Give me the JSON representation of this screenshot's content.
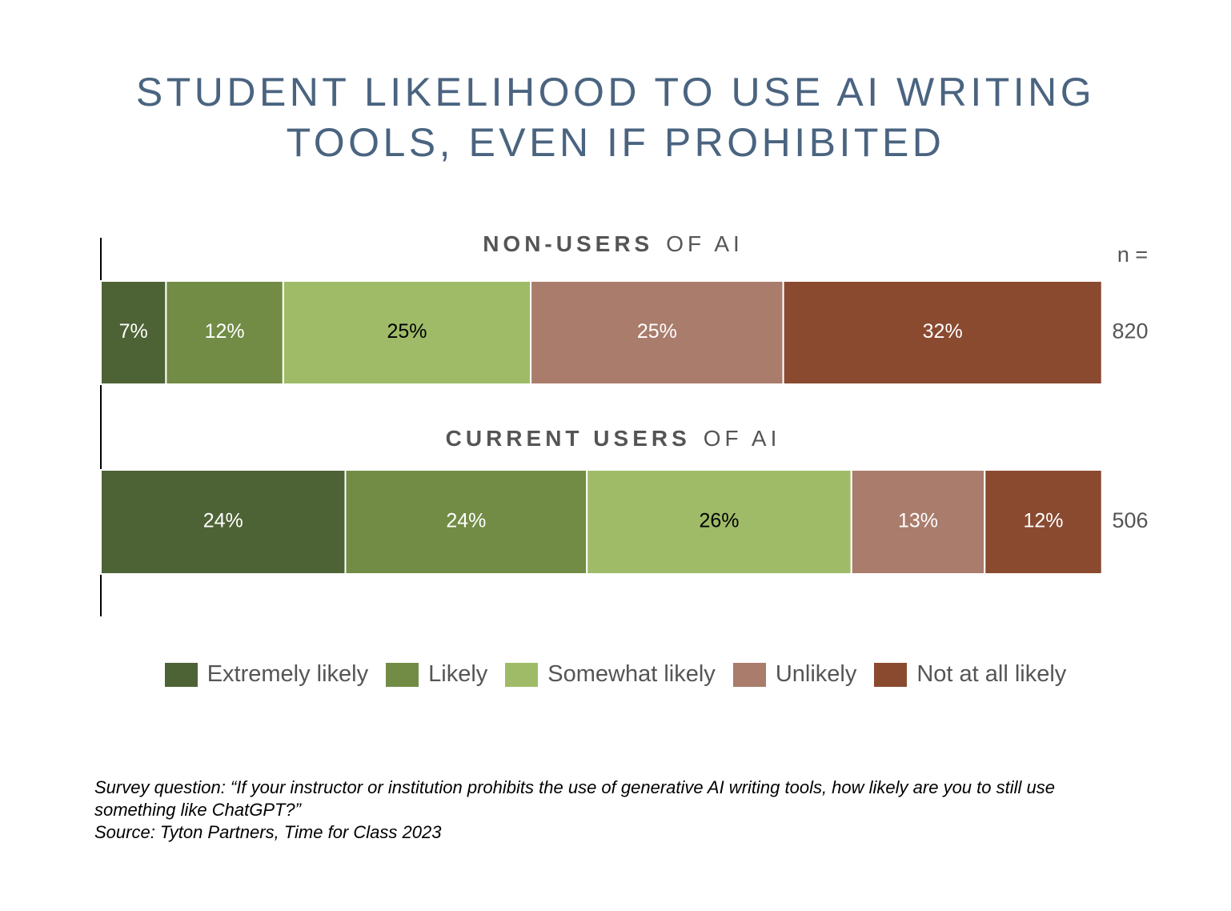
{
  "chart_data": {
    "type": "stacked_bar_horizontal",
    "title_lines": [
      "STUDENT LIKELIHOOD TO USE AI WRITING",
      "TOOLS, EVEN IF PROHIBITED"
    ],
    "categories": [
      {
        "strong": "NON-USERS",
        "rest": "OF AI"
      },
      {
        "strong": "CURRENT USERS",
        "rest": "OF AI"
      }
    ],
    "n_label": "n =",
    "n_values": [
      820,
      506
    ],
    "xlim": [
      0,
      100
    ],
    "series": [
      {
        "name": "Extremely likely",
        "color": "#4e6335",
        "label_color": "#ffffff",
        "values": [
          6.5,
          24.4
        ],
        "value_labels": [
          "7%",
          "24%"
        ]
      },
      {
        "name": "Likely",
        "color": "#728c46",
        "label_color": "#ffffff",
        "values": [
          11.7,
          24.1
        ],
        "value_labels": [
          "12%",
          "24%"
        ]
      },
      {
        "name": "Somewhat likely",
        "color": "#9fbb68",
        "label_color": "#000000",
        "values": [
          24.7,
          26.4
        ],
        "value_labels": [
          "25%",
          "26%"
        ]
      },
      {
        "name": "Unlikely",
        "color": "#a97c6c",
        "label_color": "#ffffff",
        "values": [
          25.2,
          13.3
        ],
        "value_labels": [
          "25%",
          "13%"
        ]
      },
      {
        "name": "Not at all likely",
        "color": "#8a4a30",
        "label_color": "#ffffff",
        "values": [
          31.8,
          11.7
        ],
        "value_labels": [
          "32%",
          "12%"
        ]
      }
    ],
    "note": "Survey question: “If your instructor or institution prohibits the use of generative AI writing tools, how likely are you to still use something like ChatGPT?”",
    "source": "Source: Tyton Partners, Time for Class 2023"
  }
}
